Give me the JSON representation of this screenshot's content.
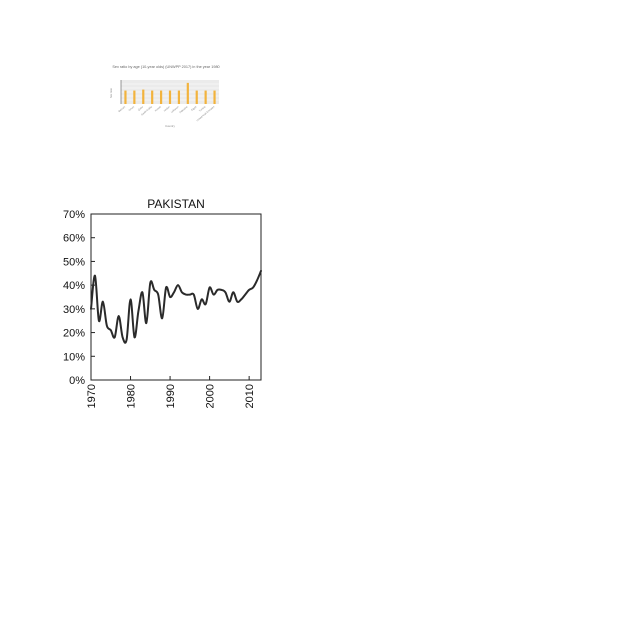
{
  "chart_data": [
    {
      "type": "bar",
      "title": "Sex ratio by age (10-year olds) (UNWPP 2017) in the year 1980",
      "xlabel": "Country",
      "ylabel": "Sex ratio",
      "categories": [
        "Bahrain",
        "Oman",
        "Qatar",
        "Saudi Arabia",
        "Kuwait",
        "Jordan",
        "Lebanon",
        "Palestine",
        "Egypt",
        "Tunisia",
        "United Arab Emirates"
      ],
      "values": [
        1.04,
        1.04,
        1.05,
        1.04,
        1.04,
        1.04,
        1.04,
        1.12,
        1.04,
        1.04,
        1.04
      ],
      "ylim": [
        0.9,
        1.15
      ],
      "colors": {
        "bar": "#f2b33d",
        "plot_bg": "#ebebeb"
      },
      "grid": true
    },
    {
      "type": "line",
      "title": "PAKISTAN",
      "xlabel": "",
      "ylabel": "",
      "x_ticks": [
        "1970",
        "1980",
        "1990",
        "2000",
        "2010"
      ],
      "y_ticks": [
        "0%",
        "10%",
        "20%",
        "30%",
        "40%",
        "50%",
        "60%",
        "70%"
      ],
      "xlim": [
        1970,
        2013
      ],
      "ylim": [
        0,
        70
      ],
      "grid": false,
      "colors": {
        "line": "#2a2a2a"
      },
      "series": [
        {
          "x": [
            1970,
            1971,
            1972,
            1973,
            1974,
            1975,
            1976,
            1977,
            1978,
            1979,
            1980,
            1981,
            1982,
            1983,
            1984,
            1985,
            1986,
            1987,
            1988,
            1989,
            1990,
            1991,
            1992,
            1993,
            1994,
            1995,
            1996,
            1997,
            1998,
            1999,
            2000,
            2001,
            2002,
            2003,
            2004,
            2005,
            2006,
            2007,
            2008,
            2009,
            2010,
            2011,
            2012,
            2013
          ],
          "y": [
            30,
            44,
            25,
            33,
            23,
            21,
            18,
            27,
            18,
            17,
            34,
            18,
            29,
            37,
            24,
            41,
            38,
            36,
            26,
            39,
            35,
            37,
            40,
            37,
            36,
            36,
            36,
            30,
            34,
            32,
            39,
            36,
            38,
            38,
            37,
            33,
            37,
            33,
            34,
            36,
            38,
            39,
            42,
            46
          ]
        }
      ]
    }
  ]
}
